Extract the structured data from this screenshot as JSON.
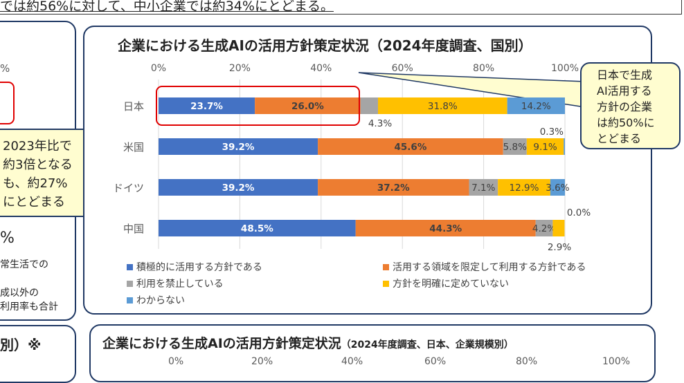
{
  "header": {
    "text": "では約56%に対して、中小企業では約34%にとどまる。"
  },
  "left_panel": {
    "pct_top": "%",
    "callout": "2023年比で\n約3倍となる\nも、約27%\nにとどまる",
    "pct_big": "%",
    "note1": "常生活での",
    "note2": "成以外の",
    "note3": "利用率も合計",
    "bottom_title": "別）※"
  },
  "callout": {
    "text": "日本で生成\nAI活用する\n方針の企業\nは約50%に\nとどまる"
  },
  "bottom_chart": {
    "title": "企業における生成AIの活用方針策定状況",
    "subtitle": "（2024年度調査、日本、企業規模別）",
    "ticks": [
      "0%",
      "20%",
      "40%",
      "60%",
      "80%",
      "100%"
    ]
  },
  "chart_data": {
    "type": "bar",
    "orientation": "horizontal",
    "stacked": true,
    "title": "企業における生成AIの活用方針策定状況（2024年度調査、国別）",
    "categories": [
      "日本",
      "米国",
      "ドイツ",
      "中国"
    ],
    "xlim": [
      0,
      100
    ],
    "x_ticks": [
      "0%",
      "20%",
      "40%",
      "60%",
      "80%",
      "100%"
    ],
    "grid": true,
    "legend_position": "bottom",
    "series": [
      {
        "name": "積極的に活用する方針である",
        "color": "#4472C4",
        "values": [
          23.7,
          39.2,
          39.2,
          48.5
        ]
      },
      {
        "name": "活用する領域を限定して利用する方針である",
        "color": "#ED7D31",
        "values": [
          26.0,
          45.6,
          37.2,
          44.3
        ]
      },
      {
        "name": "利用を禁止している",
        "color": "#A5A5A5",
        "values": [
          4.3,
          5.8,
          7.1,
          4.2
        ]
      },
      {
        "name": "方針を明確に定めていない",
        "color": "#FFC000",
        "values": [
          31.8,
          9.1,
          12.9,
          2.9
        ]
      },
      {
        "name": "わからない",
        "color": "#5B9BD5",
        "values": [
          14.2,
          0.3,
          3.6,
          0.0
        ]
      }
    ],
    "highlight_color": "#E00000"
  }
}
